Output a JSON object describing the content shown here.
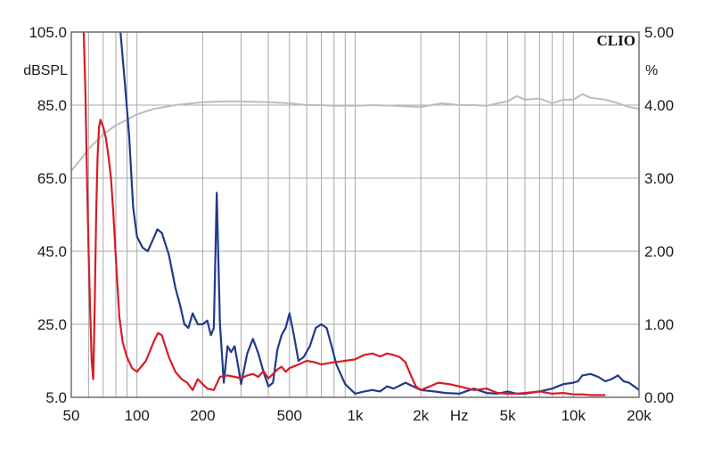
{
  "chart_data": {
    "type": "line",
    "brand": "CLIO",
    "x_scale": "log",
    "xlim": [
      50,
      20000
    ],
    "grid": true,
    "legend": "none",
    "x_ticks": [
      {
        "value": 50,
        "label": "50"
      },
      {
        "value": 100,
        "label": "100"
      },
      {
        "value": 200,
        "label": "200"
      },
      {
        "value": 500,
        "label": "500"
      },
      {
        "value": 1000,
        "label": "1k"
      },
      {
        "value": 2000,
        "label": "2k"
      },
      {
        "value": 3000,
        "label": "Hz"
      },
      {
        "value": 5000,
        "label": "5k"
      },
      {
        "value": 10000,
        "label": "10k"
      },
      {
        "value": 20000,
        "label": "20k"
      }
    ],
    "y_left": {
      "unit": "dBSPL",
      "lim": [
        5,
        105
      ],
      "ticks": [
        "105.0",
        "85.0",
        "65.0",
        "45.0",
        "25.0",
        "5.0"
      ]
    },
    "y_right": {
      "unit": "%",
      "lim": [
        0,
        5
      ],
      "ticks": [
        "5.00",
        "4.00",
        "3.00",
        "2.00",
        "1.00",
        "0.00"
      ]
    },
    "colors": {
      "frequency_response": "#bcbcbc",
      "blue_distortion": "#1f3a8c",
      "red_distortion": "#d61c24",
      "grid": "#a8a8a8",
      "frame": "#6e6e6e"
    },
    "series": [
      {
        "axis": "left",
        "color": "#bcbcbc",
        "x": [
          50,
          55,
          60,
          70,
          80,
          90,
          100,
          120,
          150,
          180,
          200,
          250,
          300,
          400,
          500,
          600,
          700,
          800,
          1000,
          1200,
          1500,
          2000,
          2500,
          3000,
          3500,
          4000,
          4500,
          5000,
          5500,
          6000,
          7000,
          8000,
          9000,
          10000,
          11000,
          12000,
          14000,
          16000,
          18000,
          20000
        ],
        "y": [
          67,
          70,
          73,
          77,
          79.5,
          81,
          82.5,
          84,
          85,
          85.5,
          85.8,
          86,
          86,
          85.8,
          85.5,
          85,
          85,
          84.8,
          84.8,
          85,
          84.8,
          84.5,
          85.5,
          85,
          85,
          84.8,
          85.5,
          86,
          87.5,
          86.5,
          86.8,
          85.5,
          86.5,
          86.5,
          88,
          87,
          86.5,
          85.5,
          84.5,
          84
        ]
      },
      {
        "axis": "right",
        "color": "#1f3a8c",
        "x": [
          84,
          88,
          92,
          96,
          100,
          106,
          112,
          118,
          124,
          130,
          140,
          150,
          158,
          165,
          172,
          180,
          190,
          200,
          210,
          218,
          225,
          232,
          240,
          250,
          260,
          270,
          280,
          290,
          300,
          320,
          340,
          360,
          380,
          400,
          420,
          440,
          460,
          480,
          500,
          520,
          550,
          580,
          620,
          660,
          700,
          740,
          780,
          820,
          900,
          1000,
          1100,
          1200,
          1300,
          1400,
          1500,
          1700,
          2000,
          2300,
          2600,
          3000,
          3500,
          4000,
          4500,
          5000,
          5500,
          6000,
          7000,
          8000,
          9000,
          10000,
          10500,
          11000,
          12000,
          13000,
          14000,
          15000,
          16000,
          17000,
          18000,
          19000,
          20000
        ],
        "y": [
          5,
          4.3,
          3.6,
          2.6,
          2.2,
          2.05,
          2.0,
          2.15,
          2.3,
          2.25,
          1.95,
          1.5,
          1.25,
          1.0,
          0.95,
          1.15,
          1.0,
          1.0,
          1.05,
          0.85,
          0.95,
          2.8,
          1.0,
          0.2,
          0.7,
          0.62,
          0.7,
          0.45,
          0.18,
          0.6,
          0.8,
          0.6,
          0.35,
          0.15,
          0.2,
          0.65,
          0.85,
          0.95,
          1.15,
          0.9,
          0.5,
          0.55,
          0.7,
          0.95,
          1.0,
          0.95,
          0.7,
          0.45,
          0.18,
          0.05,
          0.08,
          0.1,
          0.08,
          0.15,
          0.12,
          0.2,
          0.1,
          0.08,
          0.06,
          0.05,
          0.12,
          0.06,
          0.05,
          0.08,
          0.05,
          0.05,
          0.08,
          0.12,
          0.18,
          0.2,
          0.22,
          0.3,
          0.32,
          0.28,
          0.22,
          0.25,
          0.3,
          0.22,
          0.2,
          0.15,
          0.1
        ]
      },
      {
        "axis": "right",
        "color": "#d61c24",
        "x": [
          57,
          58,
          59,
          60,
          61,
          62,
          63,
          64,
          65,
          66,
          67,
          68,
          70,
          72,
          74,
          76,
          78,
          80,
          83,
          86,
          90,
          95,
          100,
          110,
          120,
          125,
          130,
          140,
          150,
          160,
          170,
          180,
          190,
          200,
          210,
          225,
          240,
          260,
          280,
          300,
          320,
          340,
          360,
          380,
          400,
          420,
          440,
          460,
          480,
          500,
          550,
          600,
          650,
          700,
          800,
          900,
          1000,
          1100,
          1200,
          1300,
          1400,
          1500,
          1600,
          1700,
          1800,
          1900,
          2000,
          2200,
          2400,
          2700,
          3000,
          3500,
          4000,
          4500,
          5000,
          5500,
          6000,
          7000,
          8000,
          9000,
          10000,
          11000,
          12000,
          13000,
          14000
        ],
        "y": [
          5,
          4.2,
          3.0,
          2.0,
          1.2,
          0.5,
          0.25,
          1.2,
          2.5,
          3.3,
          3.7,
          3.8,
          3.7,
          3.55,
          3.3,
          3.0,
          2.5,
          1.9,
          1.1,
          0.75,
          0.55,
          0.4,
          0.35,
          0.5,
          0.78,
          0.88,
          0.85,
          0.55,
          0.35,
          0.25,
          0.2,
          0.1,
          0.25,
          0.18,
          0.12,
          0.1,
          0.28,
          0.3,
          0.28,
          0.26,
          0.3,
          0.32,
          0.28,
          0.36,
          0.26,
          0.32,
          0.38,
          0.42,
          0.35,
          0.4,
          0.45,
          0.5,
          0.48,
          0.45,
          0.48,
          0.5,
          0.52,
          0.58,
          0.6,
          0.56,
          0.6,
          0.58,
          0.55,
          0.48,
          0.3,
          0.15,
          0.1,
          0.15,
          0.2,
          0.18,
          0.15,
          0.1,
          0.12,
          0.06,
          0.05,
          0.05,
          0.06,
          0.08,
          0.05,
          0.06,
          0.04,
          0.04,
          0.03,
          0.03,
          0.03
        ]
      }
    ]
  }
}
